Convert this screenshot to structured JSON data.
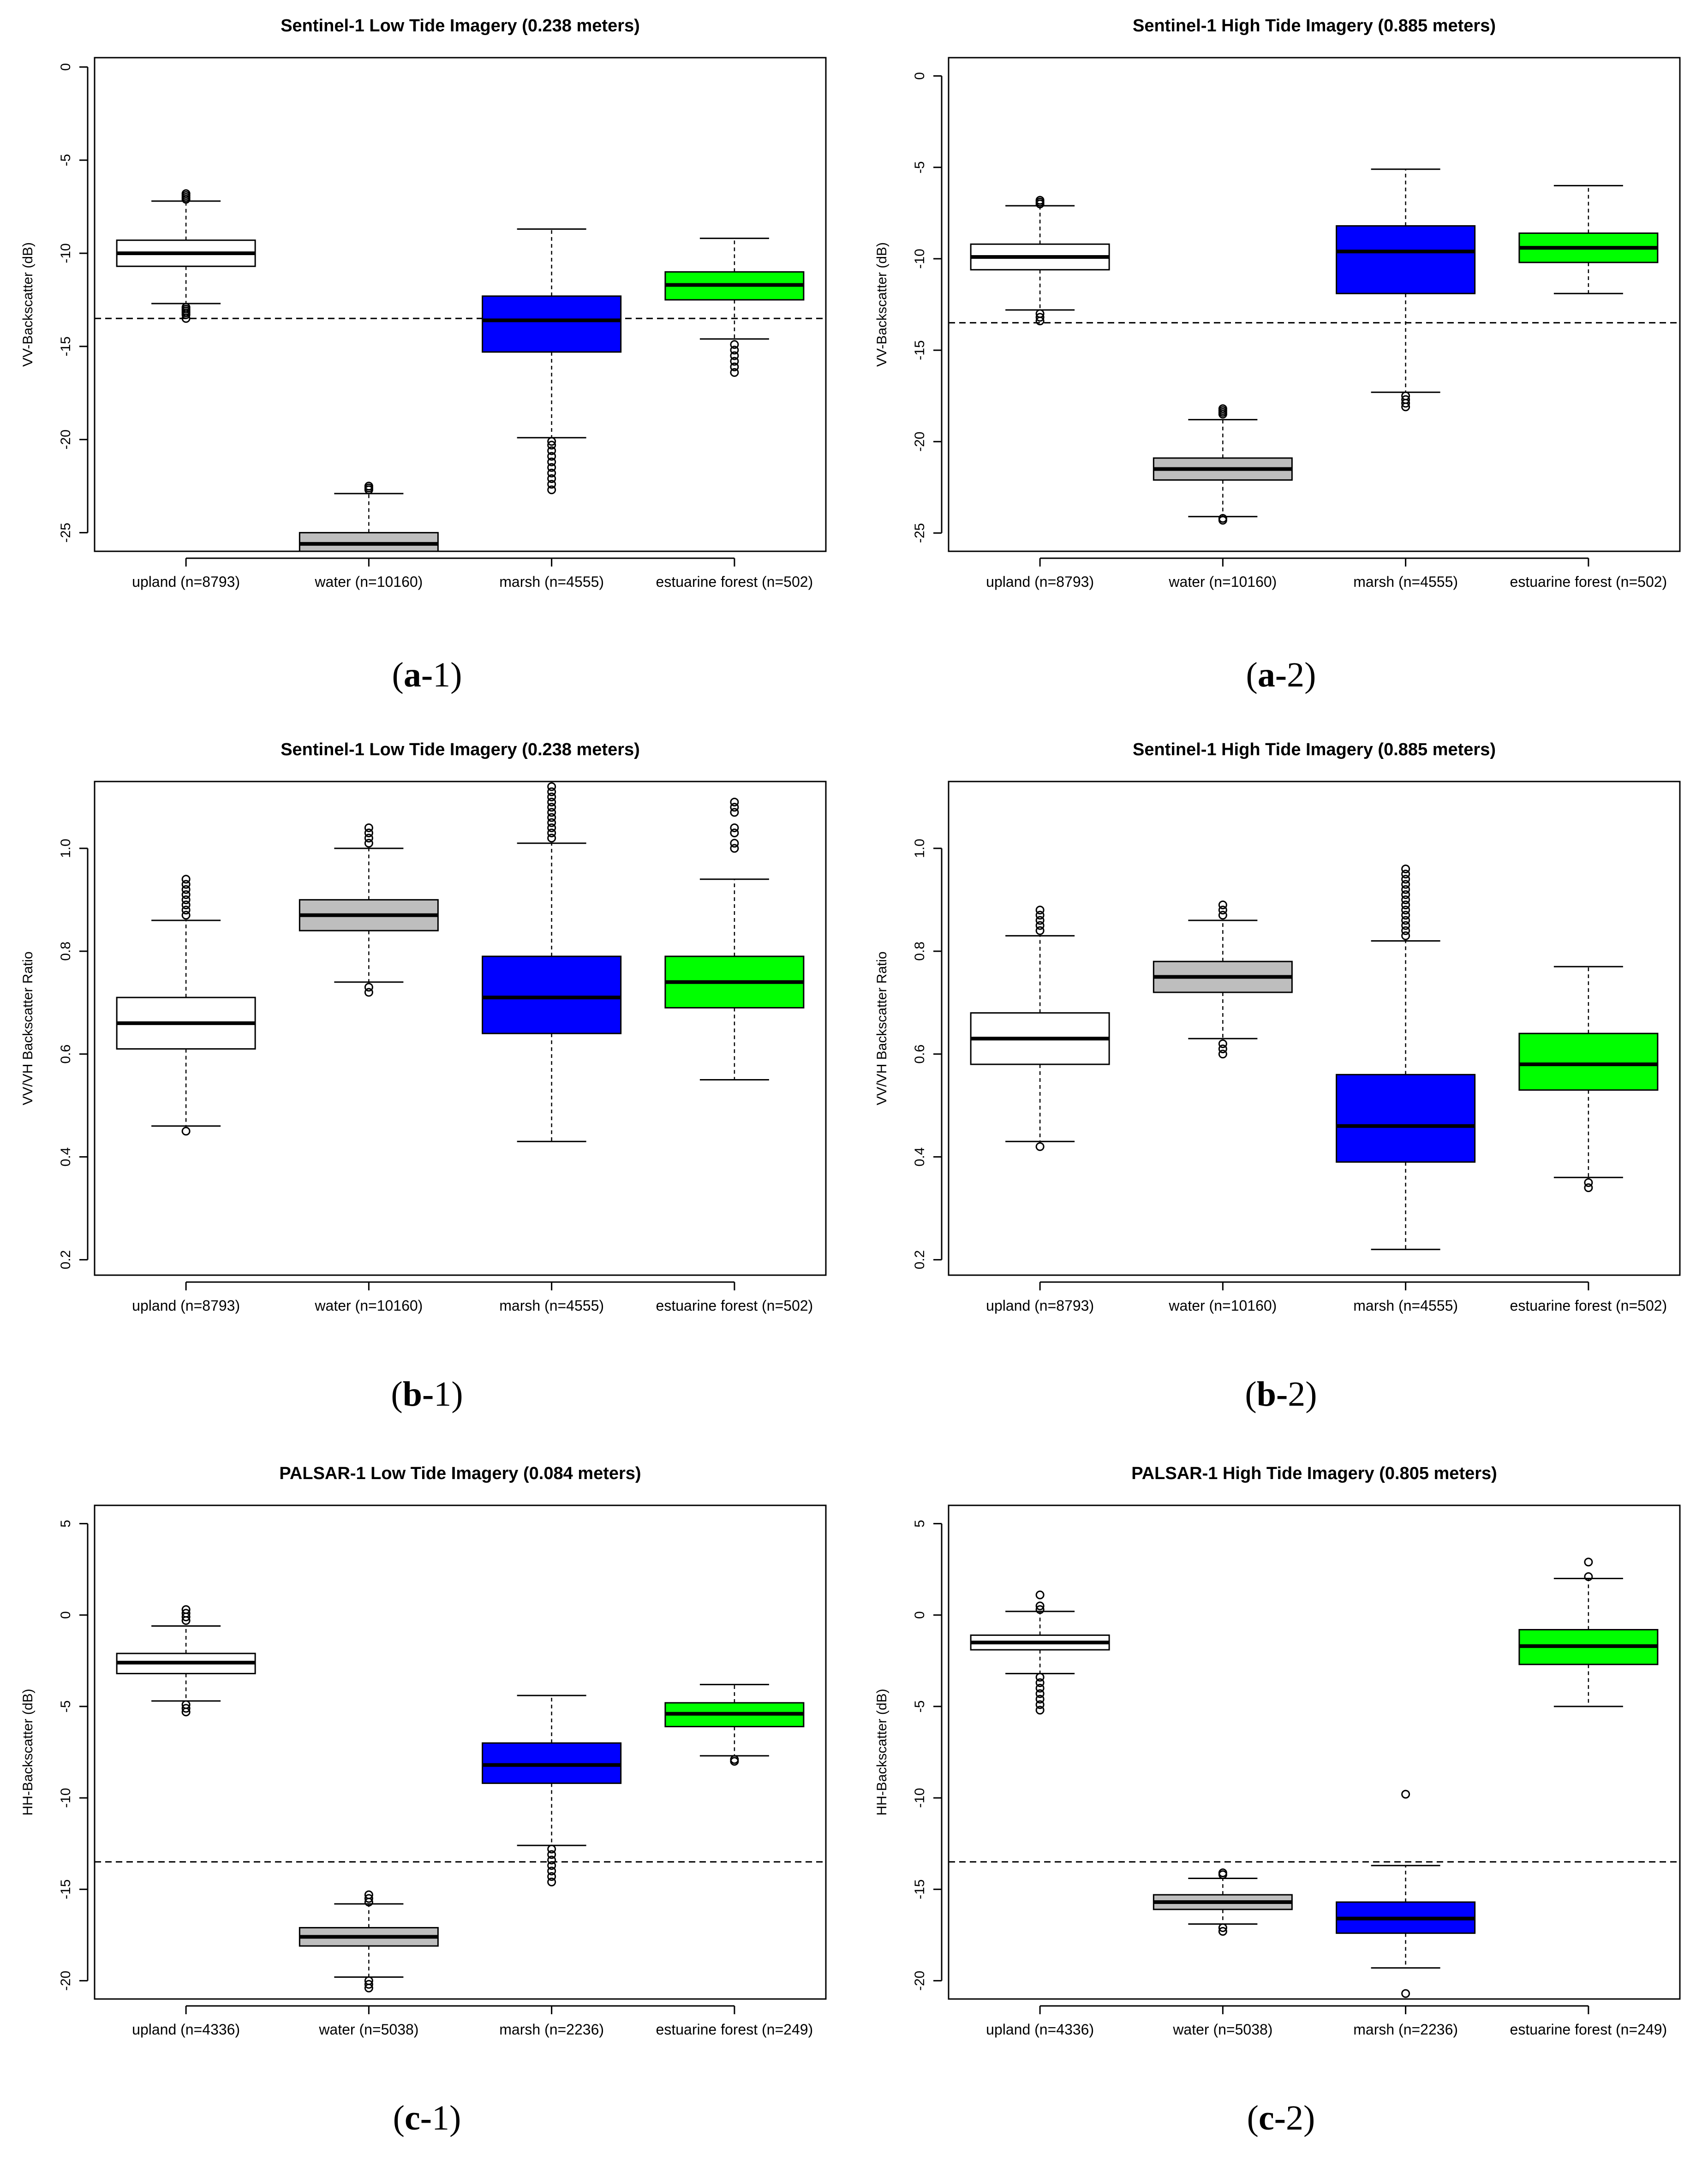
{
  "colors": {
    "upland": "#ffffff",
    "water": "#bebebe",
    "marsh": "#0000ff",
    "estuarine_forest": "#00ff00",
    "median": "#000000",
    "frame": "#000000"
  },
  "chart_data": [
    {
      "id": "a-1",
      "type": "boxplot",
      "caption_letter": "a",
      "caption_num": "1",
      "title": "Sentinel-1 Low Tide Imagery (0.238 meters)",
      "xlabel": "",
      "ylabel": "VV-Backscatter (dB)",
      "ylim": [
        -26,
        0.5
      ],
      "yticks": [
        0,
        -5,
        -10,
        -15,
        -20,
        -25
      ],
      "threshold": -13.5,
      "categories": [
        "upland (n=8793)",
        "water (n=10160)",
        "marsh (n=4555)",
        "estuarine forest (n=502)"
      ],
      "series": [
        {
          "name": "upland",
          "color": "#ffffff",
          "whisker_low": -12.7,
          "q1": -10.7,
          "median": -10.0,
          "q3": -9.3,
          "whisker_high": -7.2,
          "outliers": [
            -6.8,
            -6.9,
            -7.0,
            -7.1,
            -12.9,
            -13.0,
            -13.1,
            -13.2,
            -13.3,
            -13.5
          ]
        },
        {
          "name": "water",
          "color": "#bebebe",
          "whisker_low": -26.0,
          "q1": -26.0,
          "median": -25.6,
          "q3": -25.0,
          "whisker_high": -22.9,
          "outliers": [
            -22.5,
            -22.6,
            -22.7
          ]
        },
        {
          "name": "marsh",
          "color": "#0000ff",
          "whisker_low": -19.9,
          "q1": -15.3,
          "median": -13.6,
          "q3": -12.3,
          "whisker_high": -8.7,
          "outliers": [
            -20.1,
            -20.3,
            -20.6,
            -20.9,
            -21.2,
            -21.5,
            -21.8,
            -22.1,
            -22.4,
            -22.7
          ]
        },
        {
          "name": "estuarine forest",
          "color": "#00ff00",
          "whisker_low": -14.6,
          "q1": -12.5,
          "median": -11.7,
          "q3": -11.0,
          "whisker_high": -9.2,
          "outliers": [
            -14.9,
            -15.2,
            -15.5,
            -15.8,
            -16.1,
            -16.4
          ]
        }
      ]
    },
    {
      "id": "a-2",
      "type": "boxplot",
      "caption_letter": "a",
      "caption_num": "2",
      "title": "Sentinel-1 High Tide Imagery (0.885 meters)",
      "xlabel": "",
      "ylabel": "VV-Backscatter (dB)",
      "ylim": [
        -26,
        1
      ],
      "yticks": [
        0,
        -5,
        -10,
        -15,
        -20,
        -25
      ],
      "threshold": -13.5,
      "categories": [
        "upland (n=8793)",
        "water (n=10160)",
        "marsh (n=4555)",
        "estuarine forest (n=502)"
      ],
      "series": [
        {
          "name": "upland",
          "color": "#ffffff",
          "whisker_low": -12.8,
          "q1": -10.6,
          "median": -9.9,
          "q3": -9.2,
          "whisker_high": -7.1,
          "outliers": [
            -6.8,
            -6.9,
            -7.0,
            -13.0,
            -13.2,
            -13.4
          ]
        },
        {
          "name": "water",
          "color": "#bebebe",
          "whisker_low": -24.1,
          "q1": -22.1,
          "median": -21.5,
          "q3": -20.9,
          "whisker_high": -18.8,
          "outliers": [
            -18.2,
            -18.3,
            -18.4,
            -18.5,
            -24.2,
            -24.3
          ]
        },
        {
          "name": "marsh",
          "color": "#0000ff",
          "whisker_low": -17.3,
          "q1": -11.9,
          "median": -9.6,
          "q3": -8.2,
          "whisker_high": -5.1,
          "outliers": [
            -17.5,
            -17.7,
            -17.9,
            -18.1
          ]
        },
        {
          "name": "estuarine forest",
          "color": "#00ff00",
          "whisker_low": -11.9,
          "q1": -10.2,
          "median": -9.4,
          "q3": -8.6,
          "whisker_high": -6.0,
          "outliers": []
        }
      ]
    },
    {
      "id": "b-1",
      "type": "boxplot",
      "caption_letter": "b",
      "caption_num": "1",
      "title": "Sentinel-1 Low Tide Imagery (0.238 meters)",
      "xlabel": "",
      "ylabel": "VV/VH Backscatter Ratio",
      "ylim": [
        0.17,
        1.13
      ],
      "yticks": [
        0.2,
        0.4,
        0.6,
        0.8,
        1.0
      ],
      "threshold": null,
      "categories": [
        "upland (n=8793)",
        "water (n=10160)",
        "marsh (n=4555)",
        "estuarine forest (n=502)"
      ],
      "series": [
        {
          "name": "upland",
          "color": "#ffffff",
          "whisker_low": 0.46,
          "q1": 0.61,
          "median": 0.66,
          "q3": 0.71,
          "whisker_high": 0.86,
          "outliers": [
            0.45,
            0.87,
            0.88,
            0.89,
            0.9,
            0.91,
            0.92,
            0.93,
            0.94
          ]
        },
        {
          "name": "water",
          "color": "#bebebe",
          "whisker_low": 0.74,
          "q1": 0.84,
          "median": 0.87,
          "q3": 0.9,
          "whisker_high": 1.0,
          "outliers": [
            0.72,
            0.73,
            1.01,
            1.02,
            1.03,
            1.04
          ]
        },
        {
          "name": "marsh",
          "color": "#0000ff",
          "whisker_low": 0.43,
          "q1": 0.64,
          "median": 0.71,
          "q3": 0.79,
          "whisker_high": 1.01,
          "outliers": [
            1.02,
            1.03,
            1.04,
            1.05,
            1.06,
            1.07,
            1.08,
            1.09,
            1.1,
            1.11,
            1.12
          ]
        },
        {
          "name": "estuarine forest",
          "color": "#00ff00",
          "whisker_low": 0.55,
          "q1": 0.69,
          "median": 0.74,
          "q3": 0.79,
          "whisker_high": 0.94,
          "outliers": [
            1.0,
            1.01,
            1.03,
            1.04,
            1.07,
            1.08,
            1.09
          ]
        }
      ]
    },
    {
      "id": "b-2",
      "type": "boxplot",
      "caption_letter": "b",
      "caption_num": "2",
      "title": "Sentinel-1 High Tide Imagery (0.885 meters)",
      "xlabel": "",
      "ylabel": "VV/VH Backscatter Ratio",
      "ylim": [
        0.17,
        1.13
      ],
      "yticks": [
        0.2,
        0.4,
        0.6,
        0.8,
        1.0
      ],
      "threshold": null,
      "categories": [
        "upland (n=8793)",
        "water (n=10160)",
        "marsh (n=4555)",
        "estuarine forest (n=502)"
      ],
      "series": [
        {
          "name": "upland",
          "color": "#ffffff",
          "whisker_low": 0.43,
          "q1": 0.58,
          "median": 0.63,
          "q3": 0.68,
          "whisker_high": 0.83,
          "outliers": [
            0.42,
            0.84,
            0.85,
            0.86,
            0.87,
            0.88
          ]
        },
        {
          "name": "water",
          "color": "#bebebe",
          "whisker_low": 0.63,
          "q1": 0.72,
          "median": 0.75,
          "q3": 0.78,
          "whisker_high": 0.86,
          "outliers": [
            0.6,
            0.61,
            0.62,
            0.87,
            0.88,
            0.89
          ]
        },
        {
          "name": "marsh",
          "color": "#0000ff",
          "whisker_low": 0.22,
          "q1": 0.39,
          "median": 0.46,
          "q3": 0.56,
          "whisker_high": 0.82,
          "outliers": [
            0.83,
            0.84,
            0.85,
            0.86,
            0.87,
            0.88,
            0.89,
            0.9,
            0.91,
            0.92,
            0.93,
            0.94,
            0.95,
            0.96
          ]
        },
        {
          "name": "estuarine forest",
          "color": "#00ff00",
          "whisker_low": 0.36,
          "q1": 0.53,
          "median": 0.58,
          "q3": 0.64,
          "whisker_high": 0.77,
          "outliers": [
            0.34,
            0.35
          ]
        }
      ]
    },
    {
      "id": "c-1",
      "type": "boxplot",
      "caption_letter": "c",
      "caption_num": "1",
      "title": "PALSAR-1 Low Tide Imagery (0.084 meters)",
      "xlabel": "",
      "ylabel": "HH-Backscatter (dB)",
      "ylim": [
        -21,
        6
      ],
      "yticks": [
        5,
        0,
        -5,
        -10,
        -15,
        -20
      ],
      "threshold": -13.5,
      "categories": [
        "upland (n=4336)",
        "water (n=5038)",
        "marsh (n=2236)",
        "estuarine forest (n=249)"
      ],
      "series": [
        {
          "name": "upland",
          "color": "#ffffff",
          "whisker_low": -4.7,
          "q1": -3.2,
          "median": -2.6,
          "q3": -2.1,
          "whisker_high": -0.6,
          "outliers": [
            -0.3,
            -0.1,
            0.1,
            0.3,
            -4.9,
            -5.1,
            -5.3
          ]
        },
        {
          "name": "water",
          "color": "#bebebe",
          "whisker_low": -19.8,
          "q1": -18.1,
          "median": -17.6,
          "q3": -17.1,
          "whisker_high": -15.8,
          "outliers": [
            -15.3,
            -15.5,
            -15.7,
            -20.0,
            -20.2,
            -20.4
          ]
        },
        {
          "name": "marsh",
          "color": "#0000ff",
          "whisker_low": -12.6,
          "q1": -9.2,
          "median": -8.2,
          "q3": -7.0,
          "whisker_high": -4.4,
          "outliers": [
            -12.8,
            -13.1,
            -13.4,
            -13.7,
            -14.0,
            -14.3,
            -14.6
          ]
        },
        {
          "name": "estuarine forest",
          "color": "#00ff00",
          "whisker_low": -7.7,
          "q1": -6.1,
          "median": -5.4,
          "q3": -4.8,
          "whisker_high": -3.8,
          "outliers": [
            -7.9,
            -8.0
          ]
        }
      ]
    },
    {
      "id": "c-2",
      "type": "boxplot",
      "caption_letter": "c",
      "caption_num": "2",
      "title": "PALSAR-1 High Tide Imagery (0.805 meters)",
      "xlabel": "",
      "ylabel": "HH-Backscatter (dB)",
      "ylim": [
        -21,
        6
      ],
      "yticks": [
        5,
        0,
        -5,
        -10,
        -15,
        -20
      ],
      "threshold": -13.5,
      "categories": [
        "upland (n=4336)",
        "water (n=5038)",
        "marsh (n=2236)",
        "estuarine forest (n=249)"
      ],
      "series": [
        {
          "name": "upland",
          "color": "#ffffff",
          "whisker_low": -3.2,
          "q1": -1.9,
          "median": -1.5,
          "q3": -1.1,
          "whisker_high": 0.2,
          "outliers": [
            1.1,
            0.5,
            0.3,
            -3.4,
            -3.7,
            -4.0,
            -4.3,
            -4.6,
            -4.9,
            -5.2
          ]
        },
        {
          "name": "water",
          "color": "#bebebe",
          "whisker_low": -16.9,
          "q1": -16.1,
          "median": -15.7,
          "q3": -15.3,
          "whisker_high": -14.4,
          "outliers": [
            -14.1,
            -14.2,
            -17.1,
            -17.3
          ]
        },
        {
          "name": "marsh",
          "color": "#0000ff",
          "whisker_low": -19.3,
          "q1": -17.4,
          "median": -16.6,
          "q3": -15.7,
          "whisker_high": -13.7,
          "outliers": [
            -9.8,
            -20.7
          ]
        },
        {
          "name": "estuarine forest",
          "color": "#00ff00",
          "whisker_low": -5.0,
          "q1": -2.7,
          "median": -1.7,
          "q3": -0.8,
          "whisker_high": 2.0,
          "outliers": [
            2.1,
            2.9
          ]
        }
      ]
    }
  ]
}
